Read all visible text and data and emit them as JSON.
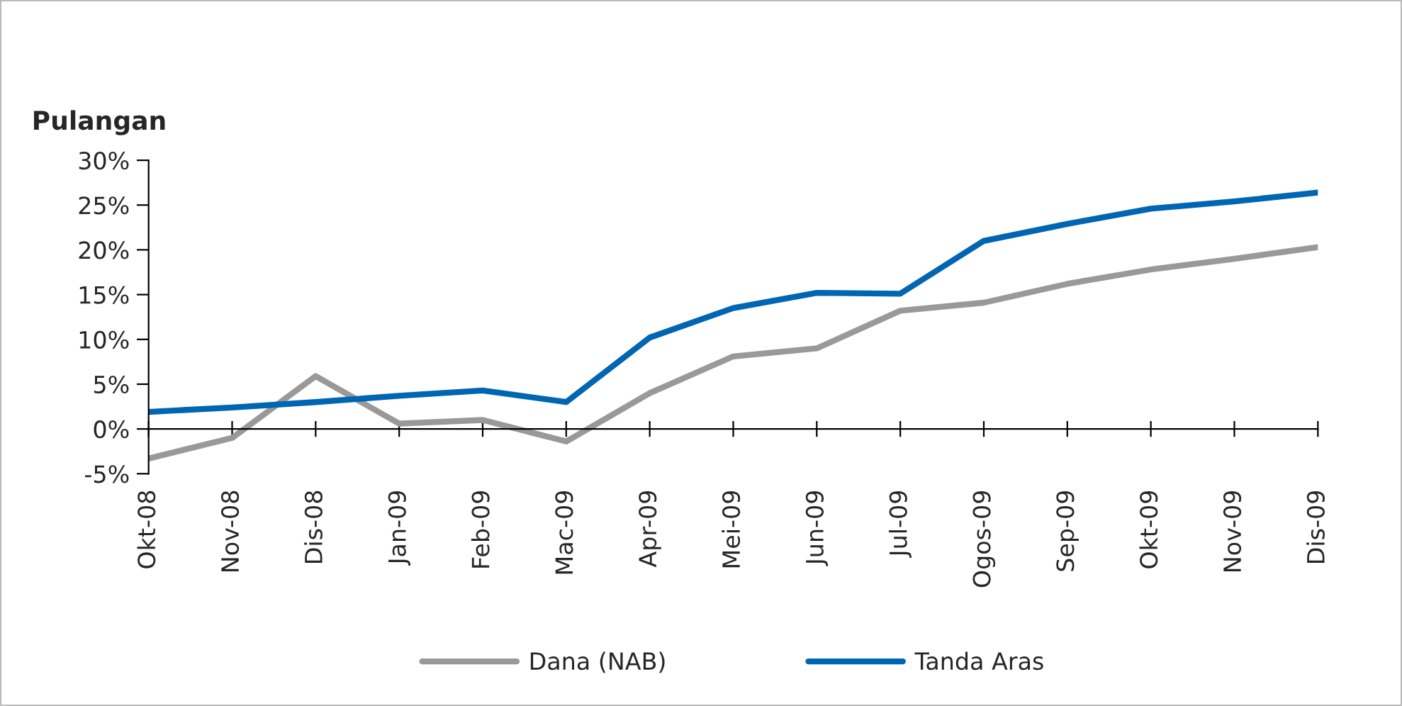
{
  "chart_data": {
    "type": "line",
    "ylabel": "Pulangan",
    "categories": [
      "Okt-08",
      "Nov-08",
      "Dis-08",
      "Jan-09",
      "Feb-09",
      "Mac-09",
      "Apr-09",
      "Mei-09",
      "Jun-09",
      "Jul-09",
      "Ogos-09",
      "Sep-09",
      "Okt-09",
      "Nov-09",
      "Dis-09"
    ],
    "series": [
      {
        "name": "Dana (NAB)",
        "color": "#999999",
        "values": [
          -3.3,
          -1,
          5.9,
          0.6,
          1,
          -1.4,
          4,
          8.1,
          9,
          13.2,
          14.1,
          16.2,
          17.8,
          19,
          20.3
        ]
      },
      {
        "name": "Tanda Aras",
        "color": "#0066b3",
        "values": [
          1.9,
          2.4,
          3,
          3.7,
          4.3,
          3,
          10.2,
          13.5,
          15.2,
          15.1,
          21,
          22.9,
          24.6,
          25.4,
          26.4
        ]
      }
    ],
    "ylim": [
      -5,
      30
    ],
    "yticks": [
      {
        "value": -5,
        "label": "-5%"
      },
      {
        "value": 0,
        "label": "0%"
      },
      {
        "value": 5,
        "label": "5%"
      },
      {
        "value": 10,
        "label": "10%"
      },
      {
        "value": 15,
        "label": "15%"
      },
      {
        "value": 20,
        "label": "20%"
      },
      {
        "value": 25,
        "label": "25%"
      },
      {
        "value": 30,
        "label": "30%"
      }
    ],
    "legend": "bottom",
    "marker": "none",
    "line_style": "solid"
  }
}
